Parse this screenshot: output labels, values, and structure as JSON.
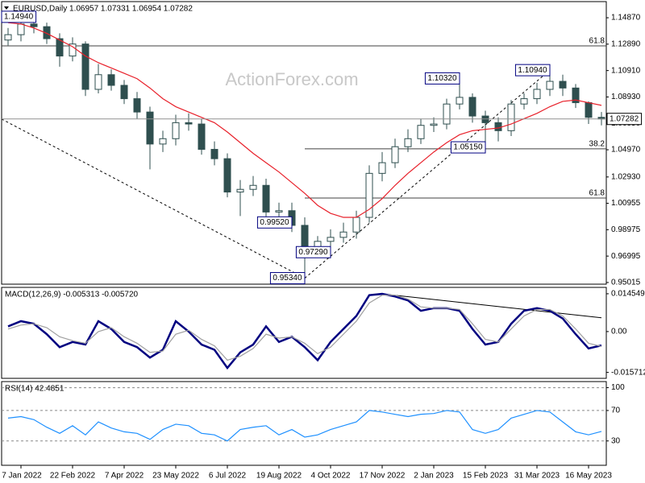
{
  "chart_data": [
    {
      "type": "candlestick",
      "title": "EURUSD,Daily  1.06957 1.07331 1.06954 1.07282",
      "watermark": "ActionForex.com",
      "categories": [
        null,
        "7 Jan 2022",
        null,
        null,
        null,
        "22 Feb 2022",
        null,
        null,
        null,
        "7 Apr 2022",
        null,
        null,
        null,
        "23 May 2022",
        null,
        null,
        null,
        "6 Jul 2022",
        null,
        null,
        null,
        "19 Aug 2022",
        null,
        null,
        null,
        "4 Oct 2022",
        null,
        null,
        null,
        "17 Nov 2022",
        null,
        null,
        null,
        "2 Jan 2023",
        null,
        null,
        null,
        "15 Feb 2023",
        null,
        null,
        null,
        "31 Mar 2023",
        null,
        null,
        null,
        "16 May 2023",
        null
      ],
      "open": [
        1.132,
        1.136,
        1.144,
        1.142,
        1.133,
        1.12,
        1.129,
        1.095,
        1.106,
        1.098,
        1.088,
        1.078,
        1.054,
        1.058,
        1.07,
        1.069,
        1.05,
        1.043,
        1.018,
        1.02,
        1.023,
        1.003,
        1.004,
        0.993,
        0.976,
        0.981,
        0.984,
        0.988,
        0.999,
        1.032,
        1.04,
        1.052,
        1.058,
        1.068,
        1.069,
        1.084,
        1.089,
        1.075,
        1.07,
        1.064,
        1.084,
        1.088,
        1.095,
        1.101,
        1.096,
        1.085,
        1.074
      ],
      "high": [
        1.141,
        1.1494,
        1.148,
        1.145,
        1.137,
        1.134,
        1.131,
        1.114,
        1.11,
        1.102,
        1.093,
        1.082,
        1.064,
        1.076,
        1.077,
        1.073,
        1.056,
        1.047,
        1.027,
        1.03,
        1.028,
        1.01,
        1.01,
        0.999,
        0.985,
        0.99,
        0.995,
        1.004,
        1.038,
        1.048,
        1.058,
        1.065,
        1.073,
        1.074,
        1.088,
        1.1032,
        1.092,
        1.079,
        1.074,
        1.087,
        1.092,
        1.1,
        1.1094,
        1.106,
        1.099,
        1.086,
        1.078
      ],
      "low": [
        1.128,
        1.131,
        1.137,
        1.129,
        1.112,
        1.116,
        1.09,
        1.092,
        1.094,
        1.084,
        1.073,
        1.035,
        1.048,
        1.053,
        1.064,
        1.046,
        1.038,
        1.014,
        1.0,
        1.015,
        0.995,
        0.996,
        0.988,
        0.9534,
        0.97,
        0.9729,
        0.98,
        0.983,
        0.995,
        1.026,
        1.036,
        1.048,
        1.054,
        1.063,
        1.065,
        1.08,
        1.07,
        1.0515,
        1.056,
        1.06,
        1.08,
        1.084,
        1.09,
        1.09,
        1.081,
        1.069,
        1.068
      ],
      "close": [
        1.136,
        1.144,
        1.142,
        1.133,
        1.12,
        1.129,
        1.095,
        1.106,
        1.098,
        1.088,
        1.078,
        1.054,
        1.058,
        1.07,
        1.069,
        1.05,
        1.043,
        1.018,
        1.02,
        1.023,
        1.003,
        1.004,
        0.993,
        0.976,
        0.981,
        0.984,
        0.988,
        0.999,
        1.032,
        1.04,
        1.052,
        1.058,
        1.068,
        1.069,
        1.084,
        1.089,
        1.075,
        1.07,
        1.064,
        1.084,
        1.088,
        1.095,
        1.101,
        1.096,
        1.085,
        1.074,
        1.0728
      ],
      "up_color": "#ffffff",
      "down_color": "#2f4f4f",
      "edge_color": "#2f4f4f",
      "series": [
        {
          "color": "#e8202a",
          "values": [
            1.145,
            1.144,
            1.141,
            1.137,
            1.132,
            1.127,
            1.12,
            1.115,
            1.111,
            1.107,
            1.103,
            1.096,
            1.088,
            1.082,
            1.078,
            1.074,
            1.07,
            1.063,
            1.055,
            1.047,
            1.04,
            1.033,
            1.025,
            1.017,
            1.008,
            1.002,
            0.999,
            0.999,
            1.005,
            1.013,
            1.023,
            1.032,
            1.04,
            1.048,
            1.055,
            1.061,
            1.064,
            1.065,
            1.066,
            1.069,
            1.073,
            1.077,
            1.082,
            1.086,
            1.087,
            1.085,
            1.083
          ]
        }
      ],
      "last_price": 1.07282,
      "ylim": [
        0.9489,
        1.1608
      ],
      "yticks": [
        {
          "value": 1.1487,
          "label": "1.14870"
        },
        {
          "value": 1.1289,
          "label": "1.12890"
        },
        {
          "value": 1.1091,
          "label": "1.10910"
        },
        {
          "value": 1.0893,
          "label": "1.08930"
        },
        {
          "value": 1.0695,
          "label": "1.06950"
        },
        {
          "value": 1.0497,
          "label": "1.04970"
        },
        {
          "value": 1.0293,
          "label": "1.02930"
        },
        1.00955,
        0.98975,
        0.96995,
        0.95015
      ],
      "grid": false,
      "annotations": [
        {
          "at": 1,
          "value": 1.1494,
          "label": "1.14940"
        },
        {
          "at": 35,
          "value": 1.1032,
          "label": "1.10320"
        },
        {
          "at": 42,
          "value": 1.1094,
          "label": "1.10940"
        },
        {
          "at": 37,
          "value": 1.0515,
          "label": "1.05150"
        },
        {
          "at": 22,
          "value": 0.9952,
          "label": "0.99520"
        },
        {
          "at": 25,
          "value": 0.9729,
          "label": "0.97290"
        },
        {
          "at": 23,
          "value": 0.9534,
          "label": "0.95340"
        }
      ],
      "levels": [
        {
          "from": 0,
          "value": 1.1276,
          "label": "61.8"
        },
        {
          "from": 23,
          "value": 1.0504,
          "label": "38.2"
        },
        {
          "from": 23,
          "value": 1.0135,
          "label": "61.8"
        }
      ],
      "trendlines": [
        {
          "from": [
            0,
            1.0727
          ],
          "to": [
            23,
            0.9534
          ]
        },
        {
          "from": [
            23,
            0.9534
          ],
          "to": [
            42,
            1.1094
          ]
        }
      ]
    },
    {
      "type": "line",
      "title": "MACD(12,26,9) -0.005313 -0.005720",
      "series": [
        {
          "color": "#000080",
          "values": [
            0.002,
            0.004,
            0.003,
            -0.001,
            -0.006,
            -0.004,
            -0.005,
            0.004,
            0.001,
            -0.004,
            -0.006,
            -0.01,
            -0.007,
            0.004,
            0.0,
            -0.005,
            -0.007,
            -0.014,
            -0.008,
            -0.005,
            0.002,
            -0.004,
            -0.002,
            -0.006,
            -0.011,
            -0.004,
            0.001,
            0.006,
            0.014,
            0.0145,
            0.0135,
            0.012,
            0.008,
            0.009,
            0.009,
            0.008,
            0.001,
            -0.005,
            -0.004,
            0.003,
            0.008,
            0.009,
            0.008,
            0.005,
            -0.001,
            -0.0065,
            -0.005313
          ]
        },
        {
          "color": "#a0a0a0",
          "values": [
            0.001,
            0.0025,
            0.003,
            0.0015,
            -0.002,
            -0.0035,
            -0.0045,
            0.0,
            0.0015,
            -0.002,
            -0.0045,
            -0.008,
            -0.0075,
            -0.001,
            0.0005,
            -0.003,
            -0.0055,
            -0.011,
            -0.0095,
            -0.0065,
            -0.001,
            -0.0025,
            -0.002,
            -0.0045,
            -0.0085,
            -0.006,
            -0.001,
            0.004,
            0.011,
            0.014,
            0.014,
            0.0125,
            0.0095,
            0.009,
            0.009,
            0.0085,
            0.003,
            -0.003,
            -0.004,
            0.001,
            0.006,
            0.0085,
            0.0085,
            0.006,
            0.001,
            -0.0045,
            -0.00572
          ]
        }
      ],
      "ylim": [
        -0.018,
        0.017
      ],
      "yticks": [
        0.014549,
        {
          "value": 0,
          "label": "0.00"
        },
        -0.015712
      ],
      "grid": false,
      "trendlines": [
        {
          "from": [
            29,
            0.0145
          ],
          "to": [
            46,
            0.0053
          ]
        }
      ]
    },
    {
      "type": "line",
      "title": "RSI(14) 42.4851",
      "series": [
        {
          "color": "#1e90ff",
          "values": [
            60,
            62,
            58,
            48,
            40,
            50,
            38,
            55,
            47,
            42,
            40,
            32,
            45,
            52,
            50,
            40,
            38,
            30,
            45,
            48,
            50,
            38,
            45,
            35,
            38,
            45,
            50,
            55,
            70,
            68,
            65,
            62,
            65,
            66,
            70,
            68,
            45,
            40,
            45,
            60,
            65,
            70,
            68,
            55,
            42,
            38,
            42.4851
          ]
        }
      ],
      "ylim": [
        -2,
        108
      ],
      "yticks": [
        100,
        70,
        30
      ],
      "grid": true
    }
  ]
}
